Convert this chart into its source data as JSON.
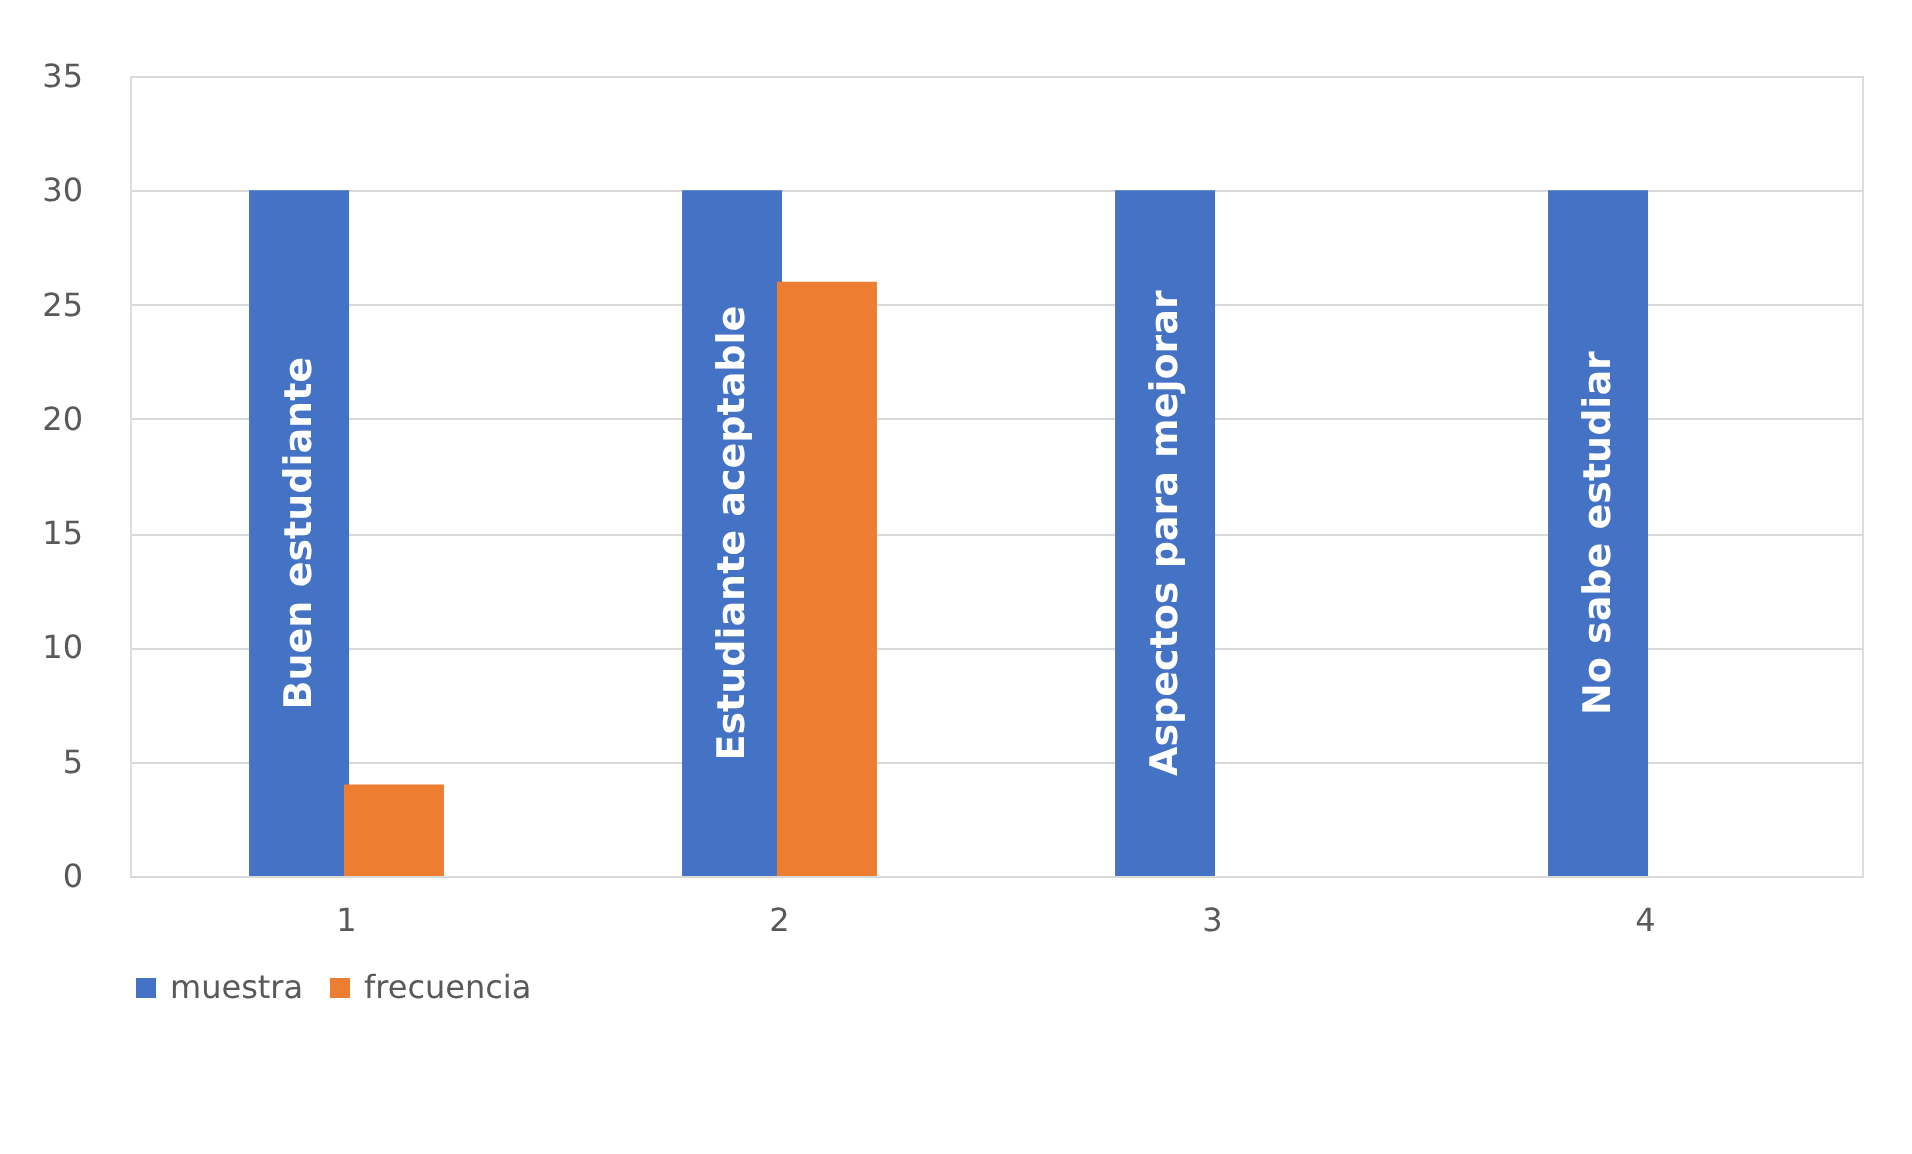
{
  "chart_data": {
    "type": "bar",
    "categories": [
      "1",
      "2",
      "3",
      "4"
    ],
    "series": [
      {
        "name": "muestra",
        "color": "#4472c4",
        "values": [
          30,
          30,
          30,
          30
        ]
      },
      {
        "name": "frecuencia",
        "color": "#ed7d31",
        "values": [
          4,
          26,
          0,
          0
        ]
      }
    ],
    "ylim": [
      0,
      35
    ],
    "yticks": [
      0,
      5,
      10,
      15,
      20,
      25,
      30,
      35
    ],
    "grid": "y",
    "legend": "bottom",
    "annotations": [
      "Buen estudiante",
      "Estudiante aceptable",
      "Aspectos para mejorar",
      "No sabe estudiar"
    ]
  }
}
